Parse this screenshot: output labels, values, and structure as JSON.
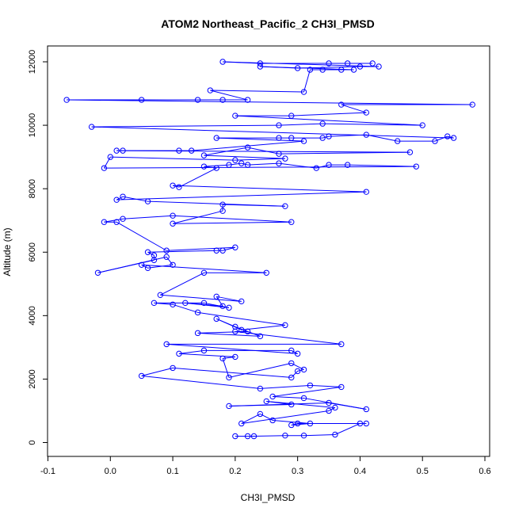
{
  "chart_data": {
    "type": "line",
    "title": "ATOM2 Northeast_Pacific_2 CH3I_PMSD",
    "xlabel": "CH3I_PMSD",
    "ylabel": "Altitude (m)",
    "xlim": [
      -0.1,
      0.6
    ],
    "ylim": [
      0,
      12000
    ],
    "x_ticks": [
      -0.1,
      0.0,
      0.1,
      0.2,
      0.3,
      0.4,
      0.5,
      0.6
    ],
    "x_tick_labels": [
      "-0.1",
      "0.0",
      "0.1",
      "0.2",
      "0.3",
      "0.4",
      "0.5",
      "0.6"
    ],
    "y_ticks": [
      0,
      2000,
      4000,
      6000,
      8000,
      10000,
      12000
    ],
    "y_tick_labels": [
      "0",
      "2000",
      "4000",
      "6000",
      "8000",
      "10000",
      "12000"
    ],
    "series_color": "#0000ff",
    "markers": "open-circle",
    "series": [
      {
        "name": "CH3I_PMSD",
        "points": [
          [
            0.2,
            200
          ],
          [
            0.22,
            200
          ],
          [
            0.23,
            200
          ],
          [
            0.28,
            220
          ],
          [
            0.31,
            220
          ],
          [
            0.36,
            250
          ],
          [
            0.4,
            600
          ],
          [
            0.41,
            600
          ],
          [
            0.3,
            600
          ],
          [
            0.29,
            550
          ],
          [
            0.32,
            600
          ],
          [
            0.26,
            700
          ],
          [
            0.24,
            900
          ],
          [
            0.21,
            600
          ],
          [
            0.35,
            1000
          ],
          [
            0.36,
            1100
          ],
          [
            0.25,
            1300
          ],
          [
            0.29,
            1200
          ],
          [
            0.19,
            1150
          ],
          [
            0.35,
            1250
          ],
          [
            0.41,
            1050
          ],
          [
            0.31,
            1400
          ],
          [
            0.26,
            1450
          ],
          [
            0.37,
            1750
          ],
          [
            0.32,
            1800
          ],
          [
            0.24,
            1700
          ],
          [
            0.05,
            2100
          ],
          [
            0.1,
            2350
          ],
          [
            0.29,
            2050
          ],
          [
            0.3,
            2250
          ],
          [
            0.31,
            2300
          ],
          [
            0.29,
            2500
          ],
          [
            0.19,
            2050
          ],
          [
            0.18,
            2650
          ],
          [
            0.2,
            2700
          ],
          [
            0.11,
            2800
          ],
          [
            0.15,
            2900
          ],
          [
            0.29,
            2900
          ],
          [
            0.3,
            2800
          ],
          [
            0.09,
            3100
          ],
          [
            0.37,
            3100
          ],
          [
            0.2,
            3500
          ],
          [
            0.22,
            3500
          ],
          [
            0.14,
            3450
          ],
          [
            0.24,
            3350
          ],
          [
            0.2,
            3650
          ],
          [
            0.17,
            3900
          ],
          [
            0.21,
            3550
          ],
          [
            0.28,
            3700
          ],
          [
            0.14,
            4100
          ],
          [
            0.1,
            4350
          ],
          [
            0.07,
            4400
          ],
          [
            0.15,
            4400
          ],
          [
            0.19,
            4250
          ],
          [
            0.12,
            4400
          ],
          [
            0.18,
            4300
          ],
          [
            0.17,
            4600
          ],
          [
            0.21,
            4450
          ],
          [
            0.08,
            4650
          ],
          [
            0.15,
            5350
          ],
          [
            0.25,
            5350
          ],
          [
            0.05,
            5600
          ],
          [
            0.06,
            5500
          ],
          [
            0.1,
            5600
          ],
          [
            0.09,
            5850
          ],
          [
            -0.02,
            5350
          ],
          [
            0.07,
            5750
          ],
          [
            0.07,
            5900
          ],
          [
            0.06,
            6000
          ],
          [
            0.17,
            6050
          ],
          [
            0.18,
            6050
          ],
          [
            0.2,
            6150
          ],
          [
            0.09,
            6050
          ],
          [
            0.01,
            6950
          ],
          [
            -0.01,
            6950
          ],
          [
            0.02,
            7050
          ],
          [
            0.1,
            7150
          ],
          [
            0.29,
            6950
          ],
          [
            0.1,
            6900
          ],
          [
            0.18,
            7300
          ],
          [
            0.18,
            7500
          ],
          [
            0.28,
            7450
          ],
          [
            0.06,
            7600
          ],
          [
            0.02,
            7750
          ],
          [
            0.01,
            7650
          ],
          [
            0.41,
            7900
          ],
          [
            0.1,
            8100
          ],
          [
            0.11,
            8050
          ],
          [
            0.17,
            8650
          ],
          [
            0.15,
            8700
          ],
          [
            0.19,
            8750
          ],
          [
            0.21,
            8800
          ],
          [
            0.22,
            8750
          ],
          [
            0.27,
            8800
          ],
          [
            0.33,
            8650
          ],
          [
            0.35,
            8750
          ],
          [
            0.38,
            8750
          ],
          [
            0.49,
            8700
          ],
          [
            -0.01,
            8650
          ],
          [
            0.0,
            9000
          ],
          [
            0.2,
            8900
          ],
          [
            0.28,
            8950
          ],
          [
            0.15,
            9050
          ],
          [
            0.22,
            9300
          ],
          [
            0.27,
            9100
          ],
          [
            0.48,
            9150
          ],
          [
            0.01,
            9200
          ],
          [
            0.02,
            9200
          ],
          [
            0.11,
            9200
          ],
          [
            0.13,
            9200
          ],
          [
            0.31,
            9500
          ],
          [
            0.17,
            9600
          ],
          [
            0.27,
            9600
          ],
          [
            0.29,
            9600
          ],
          [
            0.34,
            9600
          ],
          [
            0.35,
            9650
          ],
          [
            0.41,
            9700
          ],
          [
            0.46,
            9500
          ],
          [
            0.52,
            9500
          ],
          [
            0.54,
            9650
          ],
          [
            0.55,
            9600
          ],
          [
            -0.03,
            9950
          ],
          [
            0.27,
            10000
          ],
          [
            0.34,
            10050
          ],
          [
            0.5,
            10000
          ],
          [
            0.2,
            10300
          ],
          [
            0.29,
            10300
          ],
          [
            0.41,
            10400
          ],
          [
            0.37,
            10650
          ],
          [
            0.58,
            10650
          ],
          [
            -0.07,
            10800
          ],
          [
            0.05,
            10800
          ],
          [
            0.14,
            10800
          ],
          [
            0.18,
            10800
          ],
          [
            0.22,
            10800
          ],
          [
            0.16,
            11100
          ],
          [
            0.31,
            11050
          ],
          [
            0.32,
            11750
          ],
          [
            0.34,
            11750
          ],
          [
            0.37,
            11750
          ],
          [
            0.39,
            11750
          ],
          [
            0.24,
            11850
          ],
          [
            0.3,
            11800
          ],
          [
            0.4,
            11850
          ],
          [
            0.43,
            11850
          ],
          [
            0.18,
            12000
          ],
          [
            0.24,
            11950
          ],
          [
            0.35,
            11950
          ],
          [
            0.38,
            11950
          ],
          [
            0.42,
            11950
          ]
        ]
      }
    ]
  }
}
